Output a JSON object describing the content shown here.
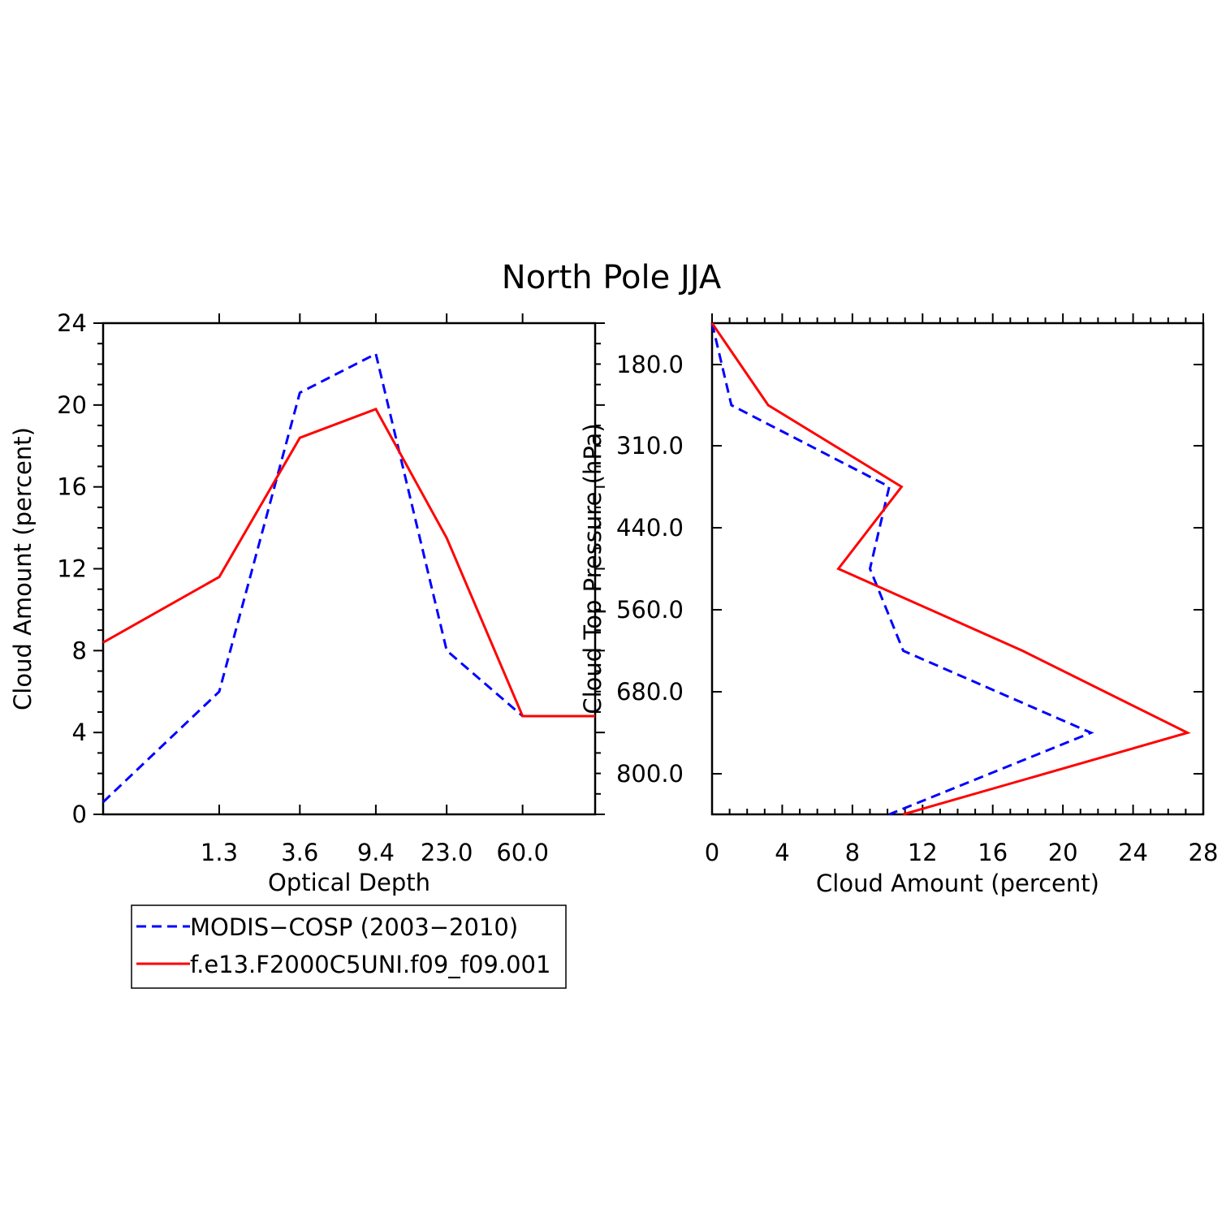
{
  "title": "North Pole JJA",
  "colors": {
    "modis": "#0000ff",
    "model": "#ff0000",
    "axis": "#000000"
  },
  "legend": {
    "entries": [
      {
        "label": "MODIS−COSP (2003−2010)",
        "color": "#0000ff",
        "style": "dashed"
      },
      {
        "label": "f.e13.F2000C5UNI.f09_f09.001",
        "color": "#ff0000",
        "style": "solid"
      }
    ]
  },
  "chart_data": [
    {
      "type": "line",
      "xlabel": "Optical Depth",
      "ylabel": "Cloud Amount (percent)",
      "x": [
        0.3,
        1.3,
        3.6,
        9.4,
        23.0,
        60.0,
        150.0
      ],
      "x_ticks": [
        "1.3",
        "3.6",
        "9.4",
        "23.0",
        "60.0"
      ],
      "x_scale": "log",
      "y_ticks": [
        "0",
        "4",
        "8",
        "12",
        "16",
        "20",
        "24"
      ],
      "ylim": [
        0,
        24
      ],
      "series": [
        {
          "name": "MODIS−COSP (2003−2010)",
          "style": "dashed",
          "color": "#0000ff",
          "values": [
            0.6,
            6.0,
            20.6,
            22.5,
            8.0,
            4.8,
            4.8
          ]
        },
        {
          "name": "f.e13.F2000C5UNI.f09_f09.001",
          "style": "solid",
          "color": "#ff0000",
          "values": [
            8.4,
            11.6,
            18.4,
            19.8,
            13.5,
            4.8,
            4.8
          ]
        }
      ]
    },
    {
      "type": "line",
      "xlabel": "Cloud Amount (percent)",
      "ylabel": "Cloud Top Pressure (hPa)",
      "y_ticks": [
        "180.0",
        "310.0",
        "440.0",
        "560.0",
        "680.0",
        "800.0"
      ],
      "y_reversed": true,
      "x_ticks": [
        "0",
        "4",
        "8",
        "12",
        "16",
        "20",
        "24",
        "28"
      ],
      "xlim": [
        0,
        28
      ],
      "series": [
        {
          "name": "MODIS−COSP (2003−2010)",
          "style": "dashed",
          "color": "#0000ff",
          "x": [
            0.0,
            1.1,
            10.1,
            9.0,
            10.9,
            21.6,
            10.1
          ],
          "pressure": [
            90,
            245,
            375,
            500,
            620,
            740,
            890
          ]
        },
        {
          "name": "f.e13.F2000C5UNI.f09_f09.001",
          "style": "solid",
          "color": "#ff0000",
          "x": [
            0.0,
            3.2,
            10.8,
            7.2,
            17.7,
            27.1,
            10.9
          ],
          "pressure": [
            90,
            245,
            375,
            500,
            620,
            740,
            890
          ]
        }
      ]
    }
  ]
}
